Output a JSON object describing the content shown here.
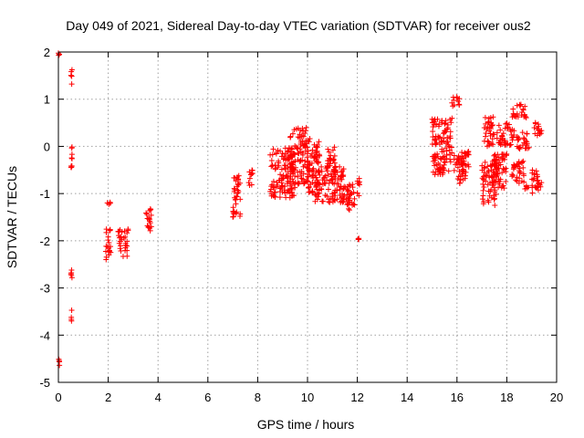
{
  "chart_data": {
    "type": "scatter",
    "title": "Day 049 of 2021, Sidereal Day-to-day VTEC variation (SDTVAR) for receiver ous2",
    "xlabel": "GPS time / hours",
    "ylabel": "SDTVAR / TECUs",
    "xlim": [
      0,
      20
    ],
    "ylim": [
      -5,
      2
    ],
    "xticks": [
      "0",
      "2",
      "4",
      "6",
      "8",
      "10",
      "12",
      "14",
      "16",
      "18",
      "20"
    ],
    "yticks": [
      "2",
      "1",
      "0",
      "-1",
      "-2",
      "-3",
      "-4",
      "-5"
    ],
    "grid": true,
    "legend": "none",
    "marker": "plus",
    "color": "#ff0000",
    "clusters": [
      {
        "x0": 0.0,
        "x1": 0.05,
        "y0": 1.92,
        "y1": 1.98
      },
      {
        "x0": 0.0,
        "x1": 0.05,
        "y0": -4.7,
        "y1": -4.45
      },
      {
        "x0": 0.5,
        "x1": 0.55,
        "y0": 1.3,
        "y1": 1.7
      },
      {
        "x0": 0.5,
        "x1": 0.55,
        "y0": -0.65,
        "y1": 0.05
      },
      {
        "x0": 0.5,
        "x1": 0.55,
        "y0": -2.8,
        "y1": -2.45
      },
      {
        "x0": 0.5,
        "x1": 0.55,
        "y0": -3.75,
        "y1": -3.45
      },
      {
        "x0": 1.9,
        "x1": 2.1,
        "y0": -1.25,
        "y1": -1.15
      },
      {
        "x0": 1.9,
        "x1": 2.1,
        "y0": -2.4,
        "y1": -1.7
      },
      {
        "x0": 2.4,
        "x1": 2.8,
        "y0": -2.35,
        "y1": -1.75
      },
      {
        "x0": 3.5,
        "x1": 3.75,
        "y0": -1.8,
        "y1": -1.3
      },
      {
        "x0": 7.0,
        "x1": 7.3,
        "y0": -1.5,
        "y1": -0.6
      },
      {
        "x0": 7.6,
        "x1": 7.8,
        "y0": -0.85,
        "y1": -0.5
      },
      {
        "x0": 8.5,
        "x1": 9.5,
        "y0": -1.1,
        "y1": 0.0
      },
      {
        "x0": 9.3,
        "x1": 10.0,
        "y0": -0.8,
        "y1": 0.4
      },
      {
        "x0": 10.0,
        "x1": 10.5,
        "y0": -1.0,
        "y1": 0.2
      },
      {
        "x0": 10.3,
        "x1": 11.5,
        "y0": -1.2,
        "y1": -0.4
      },
      {
        "x0": 10.8,
        "x1": 11.1,
        "y0": -0.6,
        "y1": 0.0
      },
      {
        "x0": 11.4,
        "x1": 11.9,
        "y0": -1.35,
        "y1": -0.8
      },
      {
        "x0": 12.0,
        "x1": 12.1,
        "y0": -1.05,
        "y1": -0.6
      },
      {
        "x0": 12.0,
        "x1": 12.1,
        "y0": -2.0,
        "y1": -1.9
      },
      {
        "x0": 15.0,
        "x1": 15.8,
        "y0": -0.1,
        "y1": 0.6
      },
      {
        "x0": 15.0,
        "x1": 16.5,
        "y0": -0.6,
        "y1": -0.1
      },
      {
        "x0": 15.8,
        "x1": 16.1,
        "y0": 0.8,
        "y1": 1.05
      },
      {
        "x0": 16.0,
        "x1": 16.4,
        "y0": -0.8,
        "y1": -0.3
      },
      {
        "x0": 17.0,
        "x1": 17.6,
        "y0": -1.25,
        "y1": -0.3
      },
      {
        "x0": 17.1,
        "x1": 17.5,
        "y0": 0.0,
        "y1": 0.65
      },
      {
        "x0": 17.4,
        "x1": 18.0,
        "y0": -0.9,
        "y1": -0.1
      },
      {
        "x0": 17.6,
        "x1": 18.3,
        "y0": 0.0,
        "y1": 0.5
      },
      {
        "x0": 18.2,
        "x1": 18.8,
        "y0": 0.6,
        "y1": 0.9
      },
      {
        "x0": 18.2,
        "x1": 18.7,
        "y0": -0.8,
        "y1": -0.3
      },
      {
        "x0": 18.4,
        "x1": 18.9,
        "y0": -0.1,
        "y1": 0.3
      },
      {
        "x0": 18.7,
        "x1": 19.0,
        "y0": -0.9,
        "y1": -0.8
      },
      {
        "x0": 19.1,
        "x1": 19.4,
        "y0": 0.2,
        "y1": 0.55
      },
      {
        "x0": 19.0,
        "x1": 19.4,
        "y0": -1.0,
        "y1": -0.5
      }
    ]
  }
}
